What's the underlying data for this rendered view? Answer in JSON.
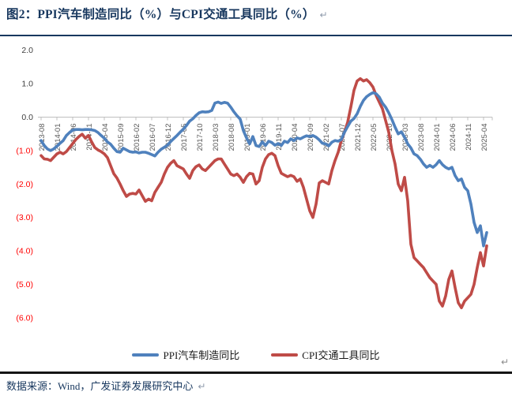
{
  "figure": {
    "title": "图2：PPI汽车制造同比（%）与CPI交通工具同比（%）",
    "paragraph_mark": "↵",
    "source_note": "数据来源：Wind，广发证券发展研究中心"
  },
  "legend": {
    "items": [
      {
        "label": "PPI汽车制造同比",
        "color": "#4f81bd"
      },
      {
        "label": "CPI交通工具同比",
        "color": "#bf4b47"
      }
    ]
  },
  "chart_data": {
    "type": "line",
    "title": "PPI汽车制造同比（%）与CPI交通工具同比（%）",
    "x_unit": "month",
    "x_start": "2013-08",
    "x_end": "2025-05",
    "x_tick_labels": [
      "2013-08",
      "2014-01",
      "2014-06",
      "2014-11",
      "2015-04",
      "2015-09",
      "2016-02",
      "2016-07",
      "2016-12",
      "2017-05",
      "2017-10",
      "2018-03",
      "2018-08",
      "2019-01",
      "2019-06",
      "2019-11",
      "2020-04",
      "2020-09",
      "2021-02",
      "2021-07",
      "2021-12",
      "2022-05",
      "2022-10",
      "2023-03",
      "2023-08",
      "2024-01",
      "2024-06",
      "2024-11",
      "2025-04"
    ],
    "y_ticks": [
      {
        "label": "2.0",
        "value": 2.0
      },
      {
        "label": "1.0",
        "value": 1.0
      },
      {
        "label": "0.0",
        "value": 0.0
      },
      {
        "label": "(1.0)",
        "value": -1.0
      },
      {
        "label": "(2.0)",
        "value": -2.0
      },
      {
        "label": "(3.0)",
        "value": -3.0
      },
      {
        "label": "(4.0)",
        "value": -4.0
      },
      {
        "label": "(5.0)",
        "value": -5.0
      },
      {
        "label": "(6.0)",
        "value": -6.0
      }
    ],
    "ylim": [
      -6.3,
      2.0
    ],
    "grid": false,
    "legend_position": "bottom",
    "axis_color": "#bfbfbf",
    "tick_label_color": "#595959",
    "y_label_color": "#3f3f3f",
    "negative_label_color": "#ff0000",
    "series": [
      {
        "name": "PPI汽车制造同比",
        "color": "#4f81bd",
        "values": [
          -0.7,
          -0.85,
          -0.95,
          -1.0,
          -0.95,
          -0.87,
          -0.78,
          -0.7,
          -0.55,
          -0.46,
          -0.39,
          -0.37,
          -0.37,
          -0.38,
          -0.37,
          -0.37,
          -0.38,
          -0.4,
          -0.46,
          -0.55,
          -0.63,
          -0.74,
          -0.81,
          -0.93,
          -1.03,
          -1.05,
          -0.93,
          -0.98,
          -1.03,
          -1.05,
          -1.04,
          -1.07,
          -1.05,
          -1.05,
          -1.08,
          -1.12,
          -1.16,
          -1.05,
          -0.96,
          -0.9,
          -0.84,
          -0.73,
          -0.64,
          -0.55,
          -0.45,
          -0.36,
          -0.25,
          -0.12,
          -0.05,
          0.05,
          0.13,
          0.16,
          0.15,
          0.16,
          0.2,
          0.42,
          0.45,
          0.41,
          0.44,
          0.42,
          0.3,
          0.16,
          0.04,
          -0.06,
          -0.4,
          -0.62,
          -0.8,
          -0.58,
          -0.85,
          -0.88,
          -0.74,
          -0.85,
          -0.72,
          -0.76,
          -0.84,
          -0.79,
          -0.85,
          -0.72,
          -0.76,
          -0.65,
          -0.7,
          -0.62,
          -0.65,
          -0.6,
          -0.56,
          -0.58,
          -0.55,
          -0.6,
          -0.68,
          -0.78,
          -0.8,
          -0.86,
          -0.75,
          -0.7,
          -0.72,
          -0.67,
          -0.45,
          -0.28,
          -0.12,
          -0.04,
          0.1,
          0.32,
          0.5,
          0.61,
          0.68,
          0.73,
          0.7,
          0.6,
          0.42,
          0.3,
          0.13,
          -0.07,
          -0.3,
          -0.5,
          -0.44,
          -0.6,
          -0.8,
          -0.92,
          -1.1,
          -1.15,
          -1.26,
          -1.4,
          -1.5,
          -1.44,
          -1.5,
          -1.42,
          -1.3,
          -1.42,
          -1.5,
          -1.55,
          -1.5,
          -1.75,
          -1.9,
          -1.85,
          -2.1,
          -2.2,
          -2.6,
          -3.15,
          -3.45,
          -3.25,
          -3.85,
          -3.45
        ]
      },
      {
        "name": "CPI交通工具同比",
        "color": "#bf4b47",
        "values": [
          -1.15,
          -1.25,
          -1.26,
          -1.3,
          -1.2,
          -1.1,
          -1.05,
          -1.1,
          -1.03,
          -0.91,
          -0.79,
          -0.67,
          -0.58,
          -0.51,
          -0.63,
          -0.55,
          -0.74,
          -0.91,
          -0.98,
          -1.03,
          -1.1,
          -1.21,
          -1.45,
          -1.69,
          -1.82,
          -2.0,
          -2.2,
          -2.37,
          -2.3,
          -2.28,
          -2.3,
          -2.18,
          -2.35,
          -2.52,
          -2.45,
          -2.5,
          -2.25,
          -2.1,
          -1.95,
          -1.7,
          -1.5,
          -1.38,
          -1.3,
          -1.45,
          -1.5,
          -1.55,
          -1.7,
          -1.83,
          -1.6,
          -1.48,
          -1.43,
          -1.55,
          -1.6,
          -1.5,
          -1.4,
          -1.3,
          -1.25,
          -1.25,
          -1.4,
          -1.55,
          -1.7,
          -1.75,
          -1.7,
          -1.8,
          -1.95,
          -1.78,
          -1.68,
          -1.7,
          -2.0,
          -1.9,
          -1.5,
          -1.25,
          -1.12,
          -1.08,
          -1.15,
          -1.45,
          -1.68,
          -1.73,
          -1.78,
          -1.74,
          -1.78,
          -1.92,
          -1.85,
          -2.1,
          -2.45,
          -2.8,
          -3.0,
          -2.6,
          -1.97,
          -1.9,
          -1.95,
          -2.0,
          -1.6,
          -1.3,
          -1.05,
          -0.7,
          -0.45,
          -0.15,
          0.3,
          0.8,
          1.08,
          1.15,
          1.08,
          1.12,
          1.03,
          0.9,
          0.65,
          0.45,
          0.25,
          -0.1,
          -0.45,
          -1.0,
          -1.4,
          -2.0,
          -2.2,
          -1.8,
          -2.5,
          -3.8,
          -4.2,
          -4.3,
          -4.4,
          -4.5,
          -4.65,
          -4.8,
          -4.9,
          -5.0,
          -5.5,
          -5.65,
          -5.35,
          -4.85,
          -4.6,
          -5.1,
          -5.55,
          -5.7,
          -5.5,
          -5.4,
          -5.3,
          -5.0,
          -4.5,
          -4.05,
          -4.45,
          -3.85
        ]
      }
    ]
  }
}
